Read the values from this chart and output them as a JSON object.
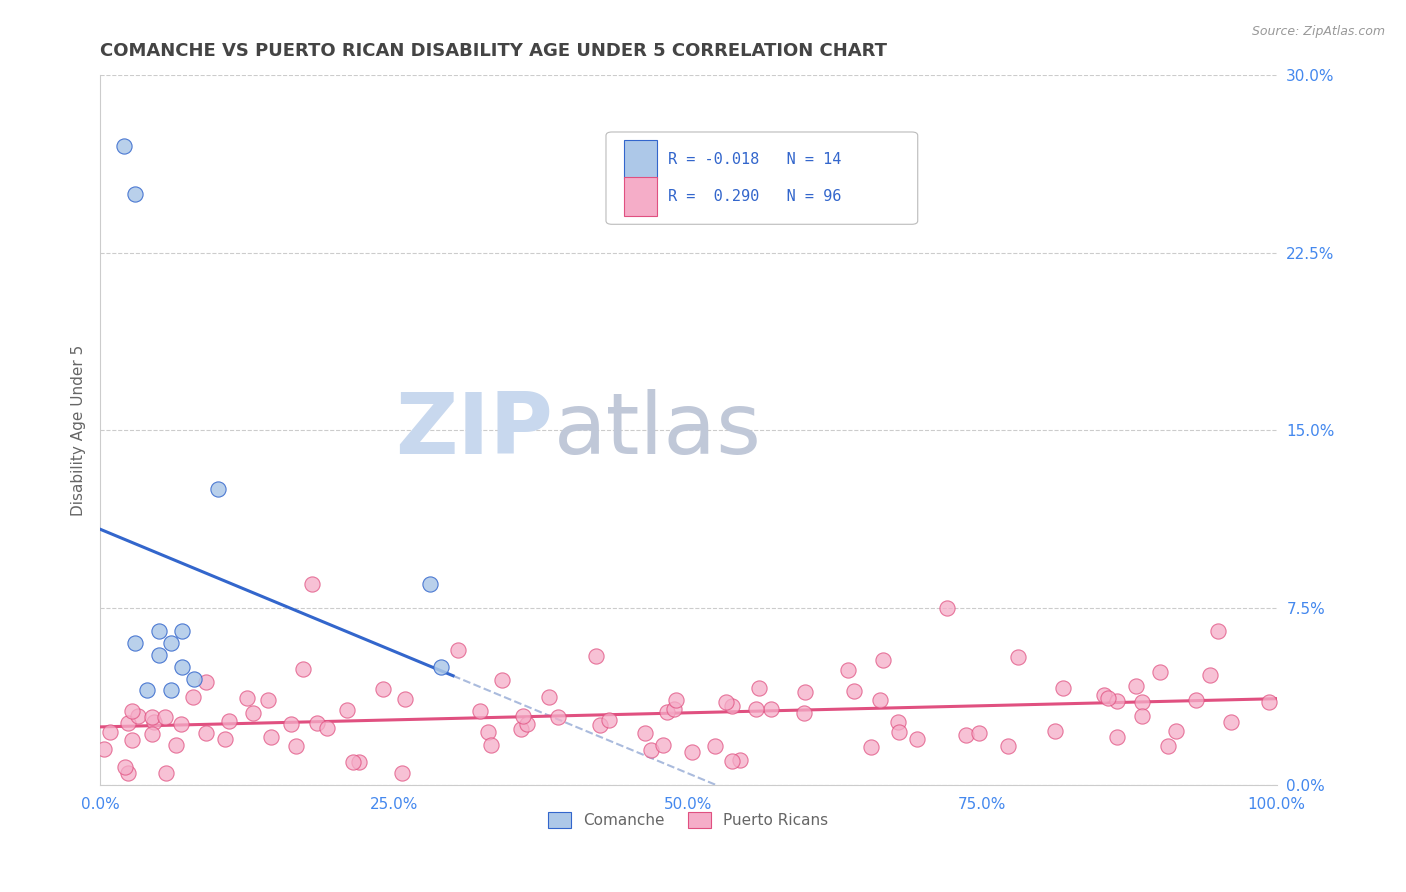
{
  "title": "COMANCHE VS PUERTO RICAN DISABILITY AGE UNDER 5 CORRELATION CHART",
  "source": "Source: ZipAtlas.com",
  "ylabel": "Disability Age Under 5",
  "xlim": [
    0,
    1.0
  ],
  "ylim": [
    0,
    0.3
  ],
  "xticks": [
    0.0,
    0.25,
    0.5,
    0.75,
    1.0
  ],
  "xticklabels": [
    "0.0%",
    "25.0%",
    "50.0%",
    "75.0%",
    "100.0%"
  ],
  "yticks_right": [
    0.0,
    0.075,
    0.15,
    0.225,
    0.3
  ],
  "yticklabels_right": [
    "0.0%",
    "7.5%",
    "15.0%",
    "22.5%",
    "30.0%"
  ],
  "comanche_R": -0.018,
  "comanche_N": 14,
  "puertoRican_R": 0.29,
  "puertoRican_N": 96,
  "comanche_color": "#adc8e8",
  "puertoRican_color": "#f5adc8",
  "comanche_line_color": "#3366cc",
  "puertoRican_line_color": "#e05080",
  "trend_line_color": "#aabbdd",
  "background_color": "#ffffff",
  "grid_color": "#cccccc",
  "title_color": "#444444",
  "axis_label_color": "#666666",
  "tick_color": "#4488ee",
  "legend_text_color": "#3366cc",
  "watermark_zip_color": "#c8d8ee",
  "watermark_atlas_color": "#c0c8d8"
}
